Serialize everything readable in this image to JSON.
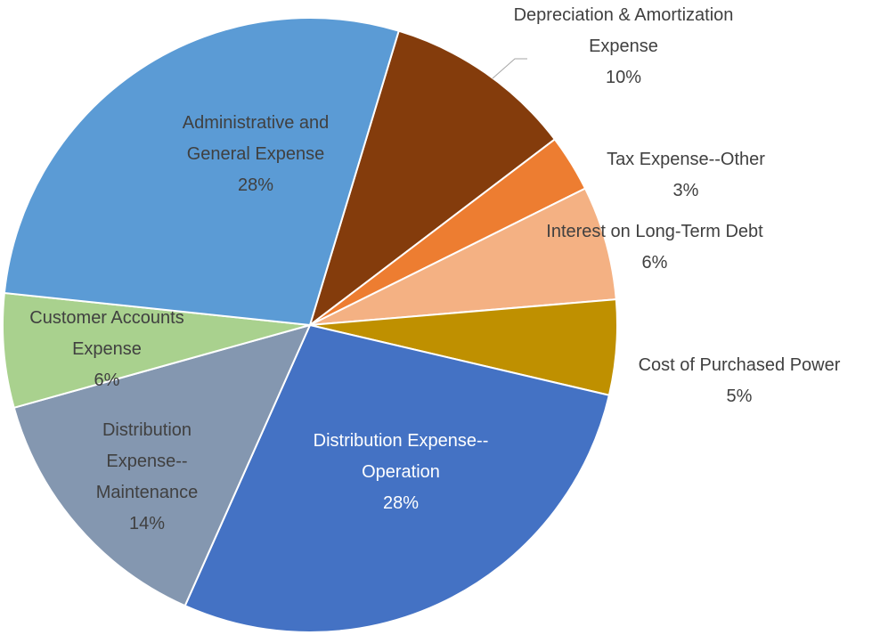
{
  "chart_data": {
    "type": "pie",
    "categories": [
      "Depreciation & Amortization Expense",
      "Tax Expense--Other",
      "Interest on Long-Term Debt",
      "Cost of Purchased Power",
      "Distribution Expense--Operation",
      "Distribution Expense--Maintenance",
      "Customer Accounts Expense",
      "Administrative and General Expense"
    ],
    "values": [
      10,
      3,
      6,
      5,
      28,
      14,
      6,
      28
    ],
    "value_labels": [
      "10%",
      "3%",
      "6%",
      "5%",
      "28%",
      "14%",
      "6%",
      "28%"
    ],
    "colors": [
      "#843c0c",
      "#ed7d31",
      "#f4b183",
      "#bf9000",
      "#4472c4",
      "#8497b0",
      "#a9d18e",
      "#5b9bd5"
    ]
  }
}
